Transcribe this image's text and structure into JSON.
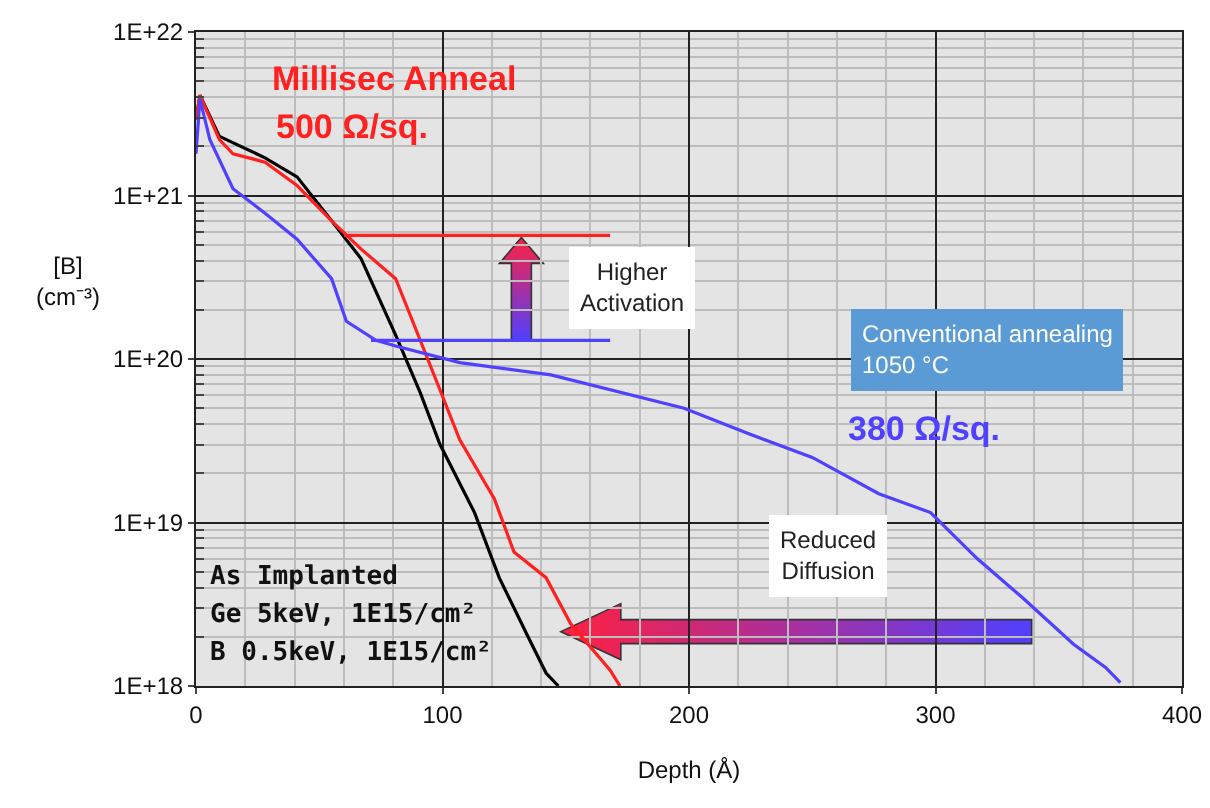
{
  "chart_data": {
    "type": "line",
    "xlabel": "Depth (Å)",
    "ylabel": "[B]\n(cm⁻³)",
    "log": "y",
    "grid": true,
    "marker": "none",
    "line_style": "solid",
    "xlim": [
      0,
      400
    ],
    "xticks": [
      0,
      100,
      200,
      300,
      400
    ],
    "ylim": [
      1e+18,
      1e+22
    ],
    "yticks": [
      {
        "value": 1e+18,
        "label": "1E+18"
      },
      {
        "value": 1e+19,
        "label": "1E+19"
      },
      {
        "value": 1e+20,
        "label": "1E+20"
      },
      {
        "value": 1e+21,
        "label": "1E+21"
      },
      {
        "value": 1e+22,
        "label": "1E+22"
      }
    ],
    "series": [
      {
        "color": "#000000",
        "x": [
          0,
          1.6,
          9.5,
          28,
          41,
          55,
          67,
          81,
          91,
          99,
          113,
          123,
          134,
          142,
          147
        ],
        "values": [
          2.9e+21,
          4.1e+21,
          2.3e+21,
          1.7e+21,
          1.3e+21,
          7e+20,
          4.1e+20,
          1.4e+20,
          6.2e+19,
          3e+19,
          1.15e+19,
          4.6e+18,
          2.1e+18,
          1.2e+18,
          1e+18
        ]
      },
      {
        "color": "#ff2020",
        "x": [
          0,
          1.6,
          9.5,
          15,
          28,
          41,
          55,
          67,
          81,
          94,
          107,
          121,
          129,
          142,
          152,
          160,
          168,
          172
        ],
        "values": [
          2.9e+21,
          4.1e+21,
          2.2e+21,
          1.8e+21,
          1.6e+21,
          1.15e+21,
          7e+20,
          4.7e+20,
          3.1e+20,
          1e+20,
          3.2e+19,
          1.4e+19,
          6.6e+18,
          4.6e+18,
          2.4e+18,
          null,
          1.25e+18,
          1e+18
        ]
      },
      {
        "color": "#5040ff",
        "x": [
          0,
          1.6,
          5.6,
          15,
          28,
          41,
          55,
          61,
          73,
          81,
          107,
          144,
          198,
          224,
          250,
          277,
          298,
          317,
          335,
          356,
          369,
          375
        ],
        "values": [
          1.8e+21,
          3.9e+21,
          2.2e+21,
          1.1e+21,
          7.8e+20,
          5.4e+20,
          3.1e+20,
          1.7e+20,
          1.3e+20,
          1.2e+20,
          9.5e+19,
          8e+19,
          5e+19,
          3.5e+19,
          2.5e+19,
          1.5e+19,
          1.15e+19,
          6e+18,
          3.5e+18,
          1.8e+18,
          1.3e+18,
          1.05e+18
        ]
      },
      {
        "type": "line",
        "color": "#ff2020",
        "x": [
          60,
          168
        ],
        "values": [
          5.7e+20,
          5.7e+20
        ]
      },
      {
        "type": "line",
        "color": "#5040ff",
        "x": [
          71,
          168
        ],
        "values": [
          1.3e+20,
          1.3e+20
        ]
      }
    ],
    "annotations": [
      "Millisec Anneal",
      "500 Ω/sq.",
      "Higher\nActivation",
      "Conventional annealing\n1050 °C",
      "380 Ω/sq.",
      "Reduced\nDiffusion",
      "As Implanted",
      "Ge 5keV, 1E15/cm²",
      "B 0.5keV, 1E15/cm²"
    ]
  }
}
